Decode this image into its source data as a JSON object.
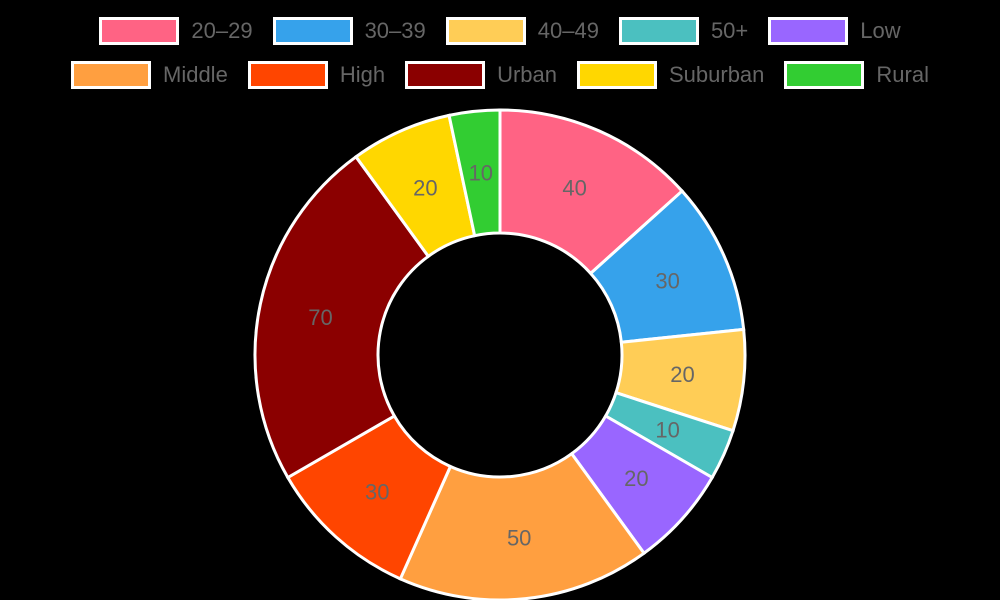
{
  "chart_data": {
    "type": "pie",
    "subtype": "doughnut",
    "title": "",
    "categories": [
      "20–29",
      "30–39",
      "40–49",
      "50+",
      "Low",
      "Middle",
      "High",
      "Urban",
      "Suburban",
      "Rural"
    ],
    "values": [
      40,
      30,
      20,
      10,
      20,
      50,
      30,
      70,
      20,
      10
    ],
    "colors": [
      "#ff6384",
      "#36a2eb",
      "#ffcd56",
      "#4bc0c0",
      "#9966ff",
      "#ff9f40",
      "#ff4500",
      "#8b0000",
      "#ffd700",
      "#32cd32"
    ],
    "data_labels": [
      "40",
      "30",
      "20",
      "10",
      "20",
      "50",
      "30",
      "70",
      "20",
      "10"
    ],
    "legend_position": "top",
    "border_color": "#ffffff",
    "label_color": "#666666"
  },
  "legend": {
    "row1": [
      {
        "label": "20–29",
        "color": "#ff6384"
      },
      {
        "label": "30–39",
        "color": "#36a2eb"
      },
      {
        "label": "40–49",
        "color": "#ffcd56"
      },
      {
        "label": "50+",
        "color": "#4bc0c0"
      },
      {
        "label": "Low",
        "color": "#9966ff"
      }
    ],
    "row2": [
      {
        "label": "Middle",
        "color": "#ff9f40"
      },
      {
        "label": "High",
        "color": "#ff4500"
      },
      {
        "label": "Urban",
        "color": "#8b0000"
      },
      {
        "label": "Suburban",
        "color": "#ffd700"
      },
      {
        "label": "Rural",
        "color": "#32cd32"
      }
    ]
  }
}
